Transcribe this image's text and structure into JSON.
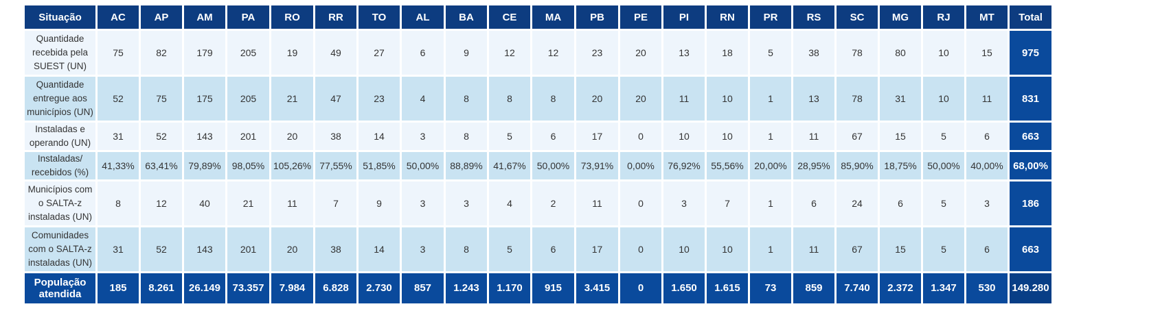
{
  "header": {
    "situation": "Situação",
    "states": [
      "AC",
      "AP",
      "AM",
      "PA",
      "RO",
      "RR",
      "TO",
      "AL",
      "BA",
      "CE",
      "MA",
      "PB",
      "PE",
      "PI",
      "RN",
      "PR",
      "RS",
      "SC",
      "MG",
      "RJ",
      "MT"
    ],
    "total": "Total"
  },
  "rows": [
    {
      "label": "Quantidade recebida pela SUEST (UN)",
      "values": [
        "75",
        "82",
        "179",
        "205",
        "19",
        "49",
        "27",
        "6",
        "9",
        "12",
        "12",
        "23",
        "20",
        "13",
        "18",
        "5",
        "38",
        "78",
        "80",
        "10",
        "15"
      ],
      "total": "975"
    },
    {
      "label": "Quantidade entregue aos municípios (UN)",
      "values": [
        "52",
        "75",
        "175",
        "205",
        "21",
        "47",
        "23",
        "4",
        "8",
        "8",
        "8",
        "20",
        "20",
        "11",
        "10",
        "1",
        "13",
        "78",
        "31",
        "10",
        "11"
      ],
      "total": "831"
    },
    {
      "label": "Instaladas e operando (UN)",
      "values": [
        "31",
        "52",
        "143",
        "201",
        "20",
        "38",
        "14",
        "3",
        "8",
        "5",
        "6",
        "17",
        "0",
        "10",
        "10",
        "1",
        "11",
        "67",
        "15",
        "5",
        "6"
      ],
      "total": "663"
    },
    {
      "label": "Instaladas/ recebidos (%)",
      "values": [
        "41,33%",
        "63,41%",
        "79,89%",
        "98,05%",
        "105,26%",
        "77,55%",
        "51,85%",
        "50,00%",
        "88,89%",
        "41,67%",
        "50,00%",
        "73,91%",
        "0,00%",
        "76,92%",
        "55,56%",
        "20,00%",
        "28,95%",
        "85,90%",
        "18,75%",
        "50,00%",
        "40,00%"
      ],
      "total": "68,00%"
    },
    {
      "label": "Municípios com o SALTA-z instaladas (UN)",
      "values": [
        "8",
        "12",
        "40",
        "21",
        "11",
        "7",
        "9",
        "3",
        "3",
        "4",
        "2",
        "11",
        "0",
        "3",
        "7",
        "1",
        "6",
        "24",
        "6",
        "5",
        "3"
      ],
      "total": "186"
    },
    {
      "label": "Comunidades com o SALTA-z instaladas (UN)",
      "values": [
        "31",
        "52",
        "143",
        "201",
        "20",
        "38",
        "14",
        "3",
        "8",
        "5",
        "6",
        "17",
        "0",
        "10",
        "10",
        "1",
        "11",
        "67",
        "15",
        "5",
        "6"
      ],
      "total": "663"
    },
    {
      "label": "População atendida",
      "values": [
        "185",
        "8.261",
        "26.149",
        "73.357",
        "7.984",
        "6.828",
        "2.730",
        "857",
        "1.243",
        "1.170",
        "915",
        "3.415",
        "0",
        "1.650",
        "1.615",
        "73",
        "859",
        "7.740",
        "2.372",
        "1.347",
        "530"
      ],
      "total": "149.280"
    }
  ]
}
